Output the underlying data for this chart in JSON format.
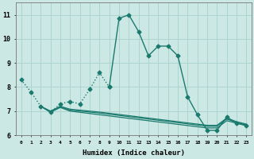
{
  "title": "",
  "xlabel": "Humidex (Indice chaleur)",
  "bg_color": "#cce8e4",
  "line_color": "#1a7a6e",
  "grid_color": "#aed4d0",
  "xlim": [
    -0.5,
    23.5
  ],
  "ylim": [
    6,
    11.5
  ],
  "yticks": [
    6,
    7,
    8,
    9,
    10,
    11
  ],
  "xticks": [
    0,
    1,
    2,
    3,
    4,
    5,
    6,
    7,
    8,
    9,
    10,
    11,
    12,
    13,
    14,
    15,
    16,
    17,
    18,
    19,
    20,
    21,
    22,
    23
  ],
  "series": [
    {
      "x": [
        0,
        1,
        2,
        3,
        4,
        5,
        6,
        7,
        8,
        9,
        10,
        11,
        12,
        13,
        14,
        15,
        16,
        17,
        18,
        19,
        20,
        21,
        22,
        23
      ],
      "y": [
        8.3,
        7.8,
        7.2,
        6.95,
        7.3,
        7.4,
        7.3,
        7.9,
        8.6,
        8.0,
        10.85,
        11.0,
        10.3,
        9.3,
        9.7,
        9.7,
        9.3,
        7.6,
        6.85,
        6.2,
        6.2,
        6.75,
        6.5,
        6.4
      ],
      "marker": "D",
      "markersize": 2.5,
      "linewidth": 1.0,
      "linestyle": "-",
      "dotted_start": 0,
      "dotted_end": 9
    },
    {
      "x": [
        2,
        3,
        4,
        5,
        6,
        7,
        8,
        9,
        10,
        11,
        12,
        13,
        14,
        15,
        16,
        17,
        18,
        19,
        20,
        21,
        22,
        23
      ],
      "y": [
        7.2,
        6.95,
        7.15,
        7.0,
        6.95,
        6.9,
        6.85,
        6.8,
        6.75,
        6.7,
        6.65,
        6.6,
        6.55,
        6.5,
        6.45,
        6.4,
        6.35,
        6.3,
        6.3,
        6.6,
        6.5,
        6.4
      ],
      "marker": null,
      "markersize": 0,
      "linewidth": 0.9,
      "linestyle": "-"
    },
    {
      "x": [
        2,
        3,
        4,
        5,
        6,
        7,
        8,
        9,
        10,
        11,
        12,
        13,
        14,
        15,
        16,
        17,
        18,
        19,
        20,
        21,
        22,
        23
      ],
      "y": [
        7.2,
        6.98,
        7.18,
        7.04,
        7.0,
        6.96,
        6.92,
        6.87,
        6.82,
        6.77,
        6.72,
        6.67,
        6.62,
        6.57,
        6.52,
        6.47,
        6.42,
        6.37,
        6.37,
        6.67,
        6.53,
        6.43
      ],
      "marker": null,
      "markersize": 0,
      "linewidth": 0.9,
      "linestyle": "-"
    },
    {
      "x": [
        2,
        3,
        4,
        5,
        6,
        7,
        8,
        9,
        10,
        11,
        12,
        13,
        14,
        15,
        16,
        17,
        18,
        19,
        20,
        21,
        22,
        23
      ],
      "y": [
        7.2,
        7.0,
        7.2,
        7.08,
        7.04,
        7.0,
        6.96,
        6.91,
        6.86,
        6.81,
        6.76,
        6.71,
        6.66,
        6.61,
        6.56,
        6.51,
        6.46,
        6.41,
        6.41,
        6.71,
        6.56,
        6.46
      ],
      "marker": null,
      "markersize": 0,
      "linewidth": 0.9,
      "linestyle": "-"
    }
  ],
  "dotted_series_end_x": 9
}
